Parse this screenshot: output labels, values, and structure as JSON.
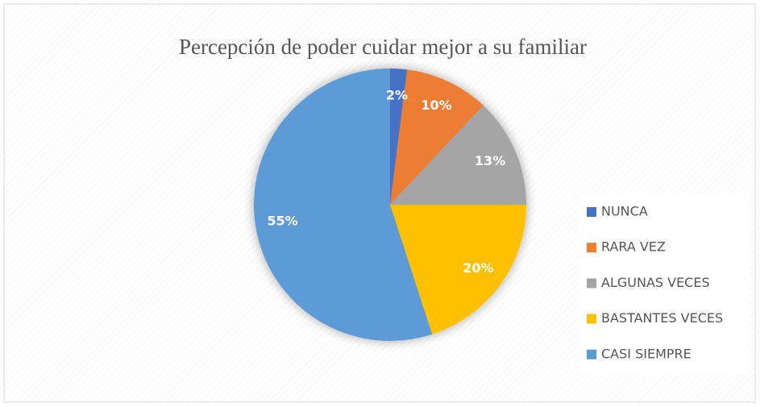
{
  "chart_data": {
    "type": "pie",
    "title": "Percepción de poder cuidar mejor a su familiar",
    "categories": [
      "NUNCA",
      "RARA VEZ",
      "ALGUNAS VECES",
      "BASTANTES VECES",
      "CASI SIEMPRE"
    ],
    "values": [
      2,
      10,
      13,
      20,
      55
    ],
    "value_labels": [
      "2%",
      "10%",
      "13%",
      "20%",
      "55%"
    ],
    "colors": [
      "#4472c4",
      "#ed7d31",
      "#a5a5a5",
      "#ffc000",
      "#5b9bd5"
    ],
    "legend": "right"
  }
}
